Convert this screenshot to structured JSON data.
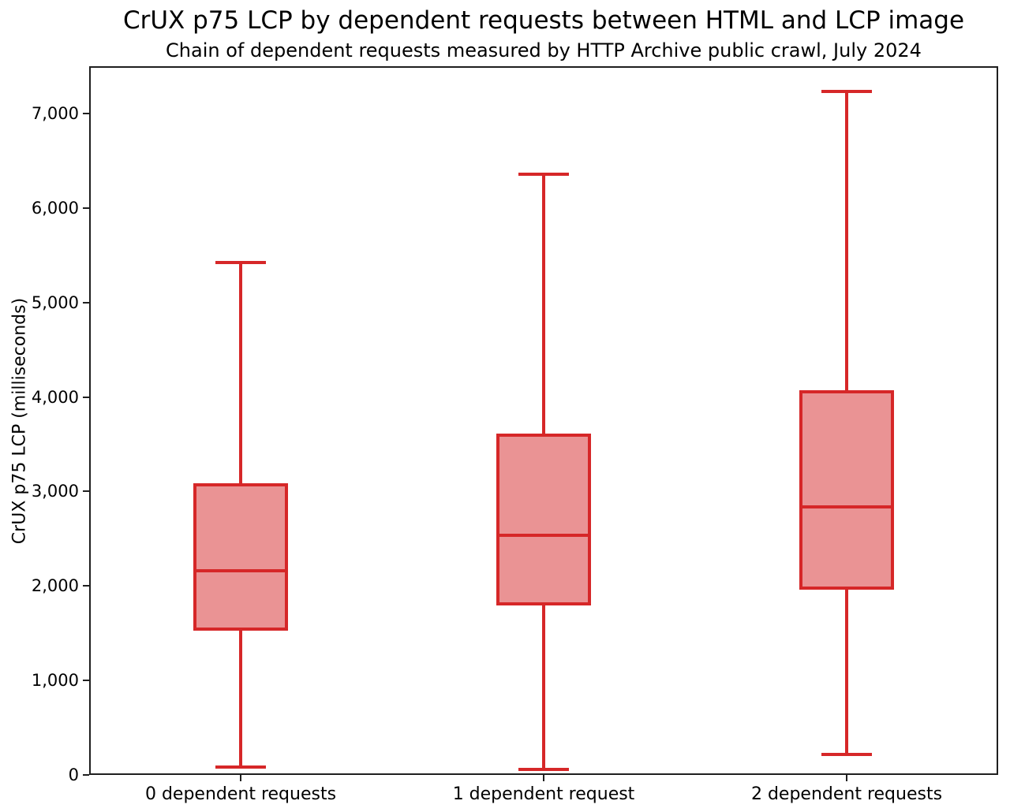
{
  "chart_data": {
    "type": "boxplot",
    "title": "CrUX p75 LCP by dependent requests between HTML and LCP image",
    "subtitle": "Chain of dependent requests measured by HTTP Archive public crawl, July 2024",
    "ylabel": "CrUX p75 LCP (milliseconds)",
    "xlabel": "",
    "ylim": [
      0,
      7500
    ],
    "yticks": [
      0,
      1000,
      2000,
      3000,
      4000,
      5000,
      6000,
      7000
    ],
    "ytick_labels": [
      "0",
      "1,000",
      "2,000",
      "3,000",
      "4,000",
      "5,000",
      "6,000",
      "7,000"
    ],
    "categories": [
      "0 dependent requests",
      "1 dependent request",
      "2 dependent requests"
    ],
    "series": [
      {
        "category": "0 dependent requests",
        "whisker_low": 80,
        "q1": 1530,
        "median": 2160,
        "q3": 3090,
        "whisker_high": 5425
      },
      {
        "category": "1 dependent request",
        "whisker_low": 60,
        "q1": 1790,
        "median": 2540,
        "q3": 3615,
        "whisker_high": 6360
      },
      {
        "category": "2 dependent requests",
        "whisker_low": 215,
        "q1": 1960,
        "median": 2840,
        "q3": 4075,
        "whisker_high": 7230
      }
    ],
    "grid": false,
    "legend_position": "none",
    "colors": {
      "box_edge": "#d62728",
      "box_fill": "#ea9394",
      "spine": "#1f1f1f",
      "text": "#000000",
      "background": "#ffffff"
    }
  }
}
